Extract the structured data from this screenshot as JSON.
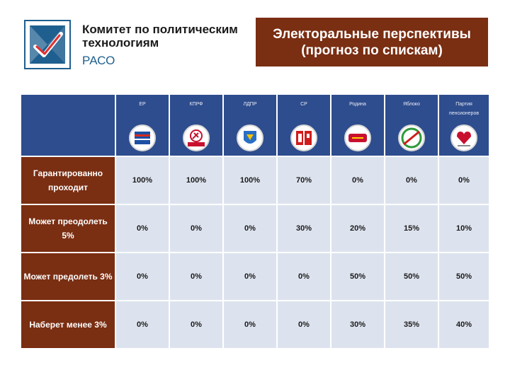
{
  "header": {
    "org_name": "Комитет по политическим технологиям",
    "org_abbr": "РАСО",
    "title_line1": "Электоральные перспективы",
    "title_line2": "(прогноз по спискам)"
  },
  "colors": {
    "row_header": "#7a2e12",
    "col_header": "#2e4d8e",
    "cell": "#dde3ee",
    "logo_border": "#1f5f8f"
  },
  "parties": [
    {
      "name": "ЕР",
      "emblem_icon": "united-russia-emblem-icon"
    },
    {
      "name": "КПРФ",
      "emblem_icon": "kprf-emblem-icon"
    },
    {
      "name": "ЛДПР",
      "emblem_icon": "ldpr-emblem-icon"
    },
    {
      "name": "СР",
      "emblem_icon": "fair-russia-emblem-icon"
    },
    {
      "name": "Родина",
      "emblem_icon": "rodina-emblem-icon"
    },
    {
      "name": "Яблоко",
      "emblem_icon": "yabloko-emblem-icon"
    },
    {
      "name": "Партия пенсионеров",
      "emblem_icon": "pensioners-party-emblem-icon"
    }
  ],
  "rows": [
    {
      "label": "Гарантированно проходит",
      "values": [
        "100%",
        "100%",
        "100%",
        "70%",
        "0%",
        "0%",
        "0%"
      ]
    },
    {
      "label": "Может преодолеть 5%",
      "values": [
        "0%",
        "0%",
        "0%",
        "30%",
        "20%",
        "15%",
        "10%"
      ]
    },
    {
      "label": "Может предолеть 3%",
      "values": [
        "0%",
        "0%",
        "0%",
        "0%",
        "50%",
        "50%",
        "50%"
      ]
    },
    {
      "label": "Наберет менее 3%",
      "values": [
        "0%",
        "0%",
        "0%",
        "0%",
        "30%",
        "35%",
        "40%"
      ]
    }
  ]
}
